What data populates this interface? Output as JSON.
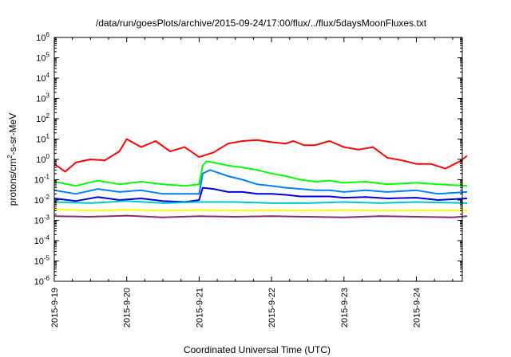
{
  "chart_data": {
    "type": "line",
    "title": "/data/run/goesPlots/archive/2015-09-24/17:00/flux/../flux/5daysMoonFluxes.txt",
    "xlabel": "Coordinated Universal Time (UTC)",
    "ylabel": {
      "base": "protons/cm",
      "sup": "2",
      "rest": "-s-sr-MeV"
    },
    "y_scale": "log",
    "ylim_exponents": [
      -6,
      6
    ],
    "y_ticks": [
      {
        "base": "10",
        "exp": "6"
      },
      {
        "base": "10",
        "exp": "5"
      },
      {
        "base": "10",
        "exp": "4"
      },
      {
        "base": "10",
        "exp": "3"
      },
      {
        "base": "10",
        "exp": "2"
      },
      {
        "base": "10",
        "exp": "1"
      },
      {
        "base": "10",
        "exp": "0"
      },
      {
        "base": "10",
        "exp": "-1"
      },
      {
        "base": "10",
        "exp": "-2"
      },
      {
        "base": "10",
        "exp": "-3"
      },
      {
        "base": "10",
        "exp": "-4"
      },
      {
        "base": "10",
        "exp": "-5"
      },
      {
        "base": "10",
        "exp": "-6"
      }
    ],
    "x_ticks": [
      "2015-9-19",
      "2015-9-20",
      "2015-9-21",
      "2015-9-22",
      "2015-9-23",
      "2015-9-24"
    ],
    "xlim": [
      "2015-09-19 00:00",
      "2015-09-24 17:00"
    ],
    "grid": false,
    "legend": "none",
    "series": [
      {
        "color": "#ff0000",
        "x": [
          0,
          0.15,
          0.3,
          0.5,
          0.7,
          0.9,
          1.0,
          1.2,
          1.4,
          1.6,
          1.8,
          2.0,
          2.2,
          2.4,
          2.6,
          2.8,
          3.0,
          3.2,
          3.3,
          3.45,
          3.6,
          3.8,
          4.0,
          4.2,
          4.4,
          4.6,
          4.8,
          5.0,
          5.2,
          5.4,
          5.6,
          5.7
        ],
        "y": [
          0.6,
          0.25,
          0.7,
          1.0,
          0.9,
          2.5,
          10,
          4,
          8,
          2.5,
          4,
          1.3,
          2.2,
          6,
          8,
          9,
          7,
          6,
          8,
          5,
          5,
          8,
          4,
          3,
          4,
          1.2,
          0.9,
          0.6,
          0.6,
          0.35,
          0.8,
          1.5
        ]
      },
      {
        "color": "#00ff00",
        "x": [
          0,
          0.3,
          0.6,
          0.9,
          1.2,
          1.5,
          1.8,
          2.0,
          2.05,
          2.1,
          2.2,
          2.4,
          2.6,
          2.8,
          3.0,
          3.2,
          3.4,
          3.6,
          3.8,
          4.0,
          4.3,
          4.6,
          5.0,
          5.3,
          5.7
        ],
        "y": [
          0.08,
          0.05,
          0.09,
          0.06,
          0.08,
          0.06,
          0.05,
          0.06,
          0.5,
          0.8,
          0.7,
          0.5,
          0.4,
          0.3,
          0.2,
          0.15,
          0.1,
          0.08,
          0.09,
          0.07,
          0.08,
          0.06,
          0.07,
          0.06,
          0.05
        ]
      },
      {
        "color": "#0080ff",
        "x": [
          0,
          0.3,
          0.6,
          0.9,
          1.2,
          1.5,
          1.8,
          2.0,
          2.05,
          2.15,
          2.4,
          2.6,
          2.8,
          3.0,
          3.2,
          3.4,
          3.6,
          3.8,
          4.0,
          4.3,
          4.6,
          5.0,
          5.3,
          5.7
        ],
        "y": [
          0.03,
          0.02,
          0.035,
          0.025,
          0.03,
          0.02,
          0.02,
          0.02,
          0.2,
          0.3,
          0.15,
          0.1,
          0.06,
          0.05,
          0.04,
          0.035,
          0.03,
          0.03,
          0.025,
          0.03,
          0.025,
          0.03,
          0.02,
          0.025
        ]
      },
      {
        "color": "#0000dd",
        "x": [
          0,
          0.3,
          0.6,
          0.9,
          1.2,
          1.5,
          1.8,
          2.0,
          2.05,
          2.2,
          2.4,
          2.6,
          2.8,
          3.0,
          3.2,
          3.4,
          3.6,
          3.8,
          4.0,
          4.3,
          4.6,
          5.0,
          5.3,
          5.7
        ],
        "y": [
          0.012,
          0.009,
          0.014,
          0.01,
          0.012,
          0.009,
          0.008,
          0.01,
          0.04,
          0.035,
          0.025,
          0.025,
          0.02,
          0.02,
          0.018,
          0.015,
          0.015,
          0.015,
          0.013,
          0.014,
          0.012,
          0.013,
          0.01,
          0.012
        ]
      },
      {
        "color": "#00c8c8",
        "x": [
          0,
          0.5,
          1.0,
          1.5,
          2.0,
          2.5,
          3.0,
          3.5,
          4.0,
          4.5,
          5.0,
          5.7
        ],
        "y": [
          0.008,
          0.007,
          0.009,
          0.007,
          0.008,
          0.008,
          0.007,
          0.007,
          0.008,
          0.007,
          0.008,
          0.007
        ]
      },
      {
        "color": "#ffff00",
        "x": [
          0,
          0.5,
          1.0,
          1.5,
          2.0,
          2.5,
          3.0,
          3.5,
          4.0,
          4.5,
          5.0,
          5.7
        ],
        "y": [
          0.0035,
          0.003,
          0.0033,
          0.003,
          0.0032,
          0.003,
          0.0031,
          0.003,
          0.0032,
          0.003,
          0.0031,
          0.003
        ]
      },
      {
        "color": "#8b2a6b",
        "x": [
          0,
          0.5,
          1.0,
          1.5,
          2.0,
          2.5,
          3.0,
          3.5,
          4.0,
          4.5,
          5.0,
          5.5,
          5.7
        ],
        "y": [
          0.0016,
          0.0015,
          0.0017,
          0.0014,
          0.0016,
          0.0015,
          0.0016,
          0.0015,
          0.0014,
          0.0016,
          0.0015,
          0.0014,
          0.0016
        ]
      }
    ]
  }
}
